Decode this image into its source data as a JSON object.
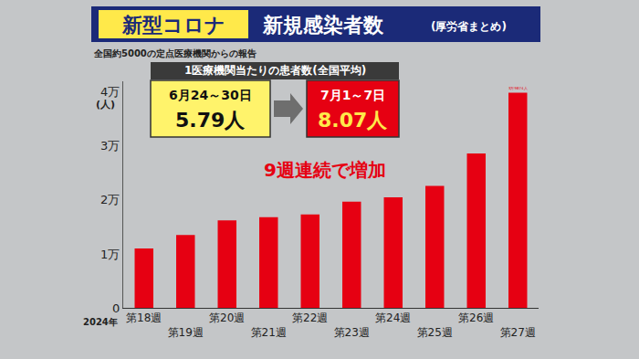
{
  "chart_data": {
    "type": "bar",
    "title": "新型コロナ",
    "subtitle": "新規感染者数",
    "annotations": {
      "source": "(厚労省まとめ)",
      "note": "全国約5000の定点医療機関からの報告",
      "year": "2024年",
      "box_title": "1医療機関当たりの患者数(全国平均)",
      "before_period": "6月24～30日",
      "before_value": "5.79人",
      "after_period": "7月1～7日",
      "after_value": "8.07人",
      "headline": "9週連続で増加"
    },
    "y_label": "(人)",
    "categories": [
      "第18週",
      "第19週",
      "第20週",
      "第21週",
      "第22週",
      "第23週",
      "第24週",
      "第25週",
      "第26週",
      "第27週"
    ],
    "values": [
      11000,
      13500,
      16200,
      16800,
      17300,
      19700,
      20500,
      22600,
      28600,
      39874
    ],
    "data_labels": true,
    "value_labels": [
      null,
      null,
      null,
      null,
      null,
      null,
      null,
      null,
      null,
      "3万9874人"
    ],
    "color": "#e60012",
    "ylim": [
      0,
      42000
    ],
    "yticks": [
      0,
      {
        "value": 10000,
        "label": "1万"
      },
      {
        "value": 20000,
        "label": "2万"
      },
      {
        "value": 30000,
        "label": "3万"
      },
      {
        "value": 40000,
        "label": "4万"
      }
    ],
    "grid": false
  }
}
